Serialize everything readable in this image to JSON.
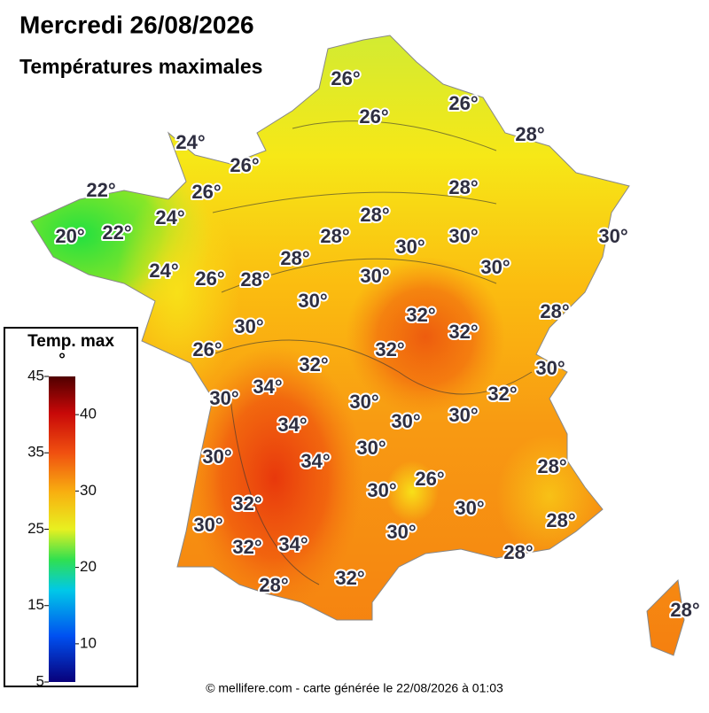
{
  "header": {
    "title": "Mercredi 26/08/2026",
    "subtitle": "Températures maximales"
  },
  "map_labels": [
    "26°",
    "26°",
    "26°",
    "28°",
    "24°",
    "26°",
    "22°",
    "26°",
    "28°",
    "24°",
    "28°",
    "20°",
    "22°",
    "28°",
    "30°",
    "30°",
    "30°",
    "28°",
    "24°",
    "26°",
    "28°",
    "30°",
    "30°",
    "30°",
    "28°",
    "30°",
    "32°",
    "32°",
    "26°",
    "32°",
    "32°",
    "30°",
    "34°",
    "30°",
    "32°",
    "30°",
    "30°",
    "30°",
    "34°",
    "30°",
    "30°",
    "34°",
    "28°",
    "26°",
    "30°",
    "32°",
    "30°",
    "30°",
    "28°",
    "32°",
    "34°",
    "30°",
    "28°",
    "28°",
    "32°",
    "28°"
  ],
  "legend": {
    "title": "Temp. max",
    "unit": "°",
    "range": [
      5,
      45
    ],
    "ticks_left": [
      45,
      35,
      25,
      15,
      5
    ],
    "ticks_right": [
      40,
      30,
      20,
      10
    ]
  },
  "footer": "© mellifere.com - carte générée le 22/08/2026 à 01:03"
}
